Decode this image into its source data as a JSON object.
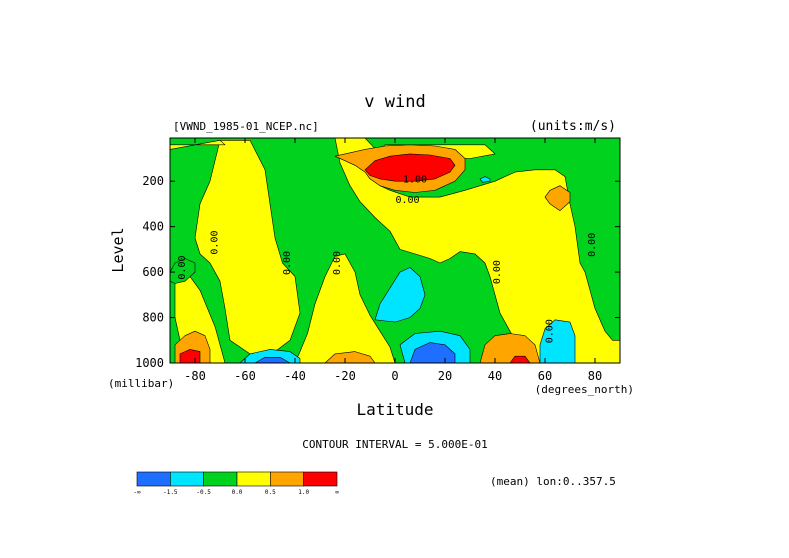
{
  "chart_data": {
    "type": "contour",
    "title": "v wind",
    "file_label": "[VWND_1985-01_NCEP.nc]",
    "units_label": "(units:m/s)",
    "xlabel": "Latitude",
    "x_units": "(degrees_north)",
    "ylabel": "Level",
    "y_units": "(millibar)",
    "xlim": [
      -90,
      90
    ],
    "ylim": [
      1000,
      10
    ],
    "x_ticks": [
      -80,
      -60,
      -40,
      -20,
      0,
      20,
      40,
      60,
      80
    ],
    "x_tick_labels": [
      "-80",
      "-60",
      "-40",
      "-20",
      "0",
      "20",
      "40",
      "60",
      "80"
    ],
    "y_ticks": [
      200,
      400,
      600,
      800,
      1000
    ],
    "y_tick_labels": [
      "200",
      "400",
      "600",
      "800",
      "1000"
    ],
    "contour_interval_text": "CONTOUR INTERVAL = 5.000E-01",
    "mean_text": "(mean) lon:0..357.5",
    "contour_labels": [
      {
        "text": "1.00",
        "x": 8,
        "y": 205
      },
      {
        "text": "0.00",
        "x": 5,
        "y": 295
      },
      {
        "text": "0.00",
        "x": -71,
        "y": 470,
        "orientation": "vertical"
      },
      {
        "text": "0.00",
        "x": -42,
        "y": 560,
        "orientation": "vertical"
      },
      {
        "text": "0.00",
        "x": -22,
        "y": 560,
        "orientation": "vertical"
      },
      {
        "text": "0.00",
        "x": 42,
        "y": 600,
        "orientation": "vertical"
      },
      {
        "text": "0.00",
        "x": 80,
        "y": 480,
        "orientation": "vertical"
      },
      {
        "text": "0.00",
        "x": 63,
        "y": 860,
        "orientation": "vertical"
      },
      {
        "text": "0.00",
        "x": -84,
        "y": 580,
        "orientation": "vertical"
      }
    ],
    "colorbar": {
      "colors": [
        "#1e6eff",
        "#00e5ff",
        "#00d21e",
        "#ffff00",
        "#ffa500",
        "#ff0000"
      ],
      "labels": [
        "-∞",
        "-1.5",
        "-0.5",
        "0.0",
        "0.5",
        "1.0",
        "∞"
      ]
    },
    "regions": [
      {
        "color": "#ffff00",
        "points": [
          [
            -70,
            20
          ],
          [
            -58,
            20
          ],
          [
            -52,
            150
          ],
          [
            -50,
            300
          ],
          [
            -48,
            450
          ],
          [
            -45,
            560
          ],
          [
            -40,
            620
          ],
          [
            -38,
            780
          ],
          [
            -42,
            900
          ],
          [
            -48,
            950
          ],
          [
            -58,
            960
          ],
          [
            -66,
            900
          ],
          [
            -68,
            760
          ],
          [
            -70,
            640
          ],
          [
            -74,
            560
          ],
          [
            -78,
            520
          ],
          [
            -80,
            450
          ],
          [
            -78,
            300
          ],
          [
            -74,
            200
          ]
        ]
      },
      {
        "color": "#ffff00",
        "points": [
          [
            -88,
            630
          ],
          [
            -82,
            620
          ],
          [
            -78,
            680
          ],
          [
            -75,
            760
          ],
          [
            -72,
            840
          ],
          [
            -70,
            920
          ],
          [
            -68,
            1000
          ],
          [
            -84,
            1000
          ],
          [
            -86,
            900
          ],
          [
            -88,
            800
          ]
        ]
      },
      {
        "color": "#ffff00",
        "points": [
          [
            -35,
            870
          ],
          [
            -32,
            740
          ],
          [
            -28,
            620
          ],
          [
            -24,
            530
          ],
          [
            -20,
            520
          ],
          [
            -16,
            600
          ],
          [
            -14,
            700
          ],
          [
            -10,
            790
          ],
          [
            -6,
            860
          ],
          [
            -2,
            930
          ],
          [
            0,
            1000
          ],
          [
            -40,
            1000
          ],
          [
            -38,
            950
          ]
        ]
      },
      {
        "color": "#ffff00",
        "points": [
          [
            -90,
            60
          ],
          [
            -70,
            20
          ],
          [
            -68,
            40
          ],
          [
            -90,
            40
          ]
        ]
      },
      {
        "color": "#ffff00",
        "points": [
          [
            -24,
            10
          ],
          [
            -12,
            10
          ],
          [
            -6,
            80
          ],
          [
            -8,
            180
          ],
          [
            -6,
            220
          ],
          [
            -2,
            240
          ],
          [
            6,
            270
          ],
          [
            18,
            270
          ],
          [
            28,
            240
          ],
          [
            40,
            200
          ],
          [
            48,
            160
          ],
          [
            56,
            150
          ],
          [
            64,
            150
          ],
          [
            68,
            180
          ],
          [
            70,
            300
          ],
          [
            72,
            400
          ],
          [
            74,
            560
          ],
          [
            76,
            600
          ],
          [
            78,
            680
          ],
          [
            80,
            760
          ],
          [
            84,
            860
          ],
          [
            87,
            900
          ],
          [
            90,
            900
          ],
          [
            90,
            1000
          ],
          [
            50,
            1000
          ],
          [
            48,
            900
          ],
          [
            42,
            780
          ],
          [
            40,
            700
          ],
          [
            38,
            620
          ],
          [
            36,
            560
          ],
          [
            32,
            520
          ],
          [
            26,
            510
          ],
          [
            22,
            540
          ],
          [
            18,
            560
          ],
          [
            14,
            540
          ],
          [
            8,
            520
          ],
          [
            2,
            500
          ],
          [
            -2,
            420
          ],
          [
            -8,
            360
          ],
          [
            -14,
            290
          ],
          [
            -18,
            220
          ],
          [
            -22,
            120
          ]
        ]
      },
      {
        "color": "#ffff00",
        "points": [
          [
            -6,
            60
          ],
          [
            -4,
            40
          ],
          [
            36,
            40
          ],
          [
            40,
            80
          ],
          [
            30,
            100
          ],
          [
            10,
            90
          ]
        ]
      },
      {
        "color": "#ffa500",
        "points": [
          [
            -24,
            90
          ],
          [
            -12,
            60
          ],
          [
            -4,
            45
          ],
          [
            6,
            40
          ],
          [
            16,
            45
          ],
          [
            24,
            60
          ],
          [
            28,
            100
          ],
          [
            28,
            150
          ],
          [
            24,
            200
          ],
          [
            16,
            240
          ],
          [
            8,
            250
          ],
          [
            0,
            240
          ],
          [
            -6,
            220
          ],
          [
            -10,
            190
          ],
          [
            -12,
            160
          ],
          [
            -16,
            130
          ]
        ]
      },
      {
        "color": "#ff0000",
        "points": [
          [
            -12,
            150
          ],
          [
            -8,
            110
          ],
          [
            -2,
            90
          ],
          [
            6,
            80
          ],
          [
            14,
            85
          ],
          [
            22,
            100
          ],
          [
            24,
            130
          ],
          [
            22,
            160
          ],
          [
            16,
            190
          ],
          [
            8,
            200
          ],
          [
            0,
            200
          ],
          [
            -6,
            190
          ],
          [
            -10,
            175
          ]
        ]
      },
      {
        "color": "#ffa500",
        "points": [
          [
            62,
            240
          ],
          [
            66,
            220
          ],
          [
            70,
            250
          ],
          [
            70,
            290
          ],
          [
            66,
            330
          ],
          [
            62,
            300
          ],
          [
            60,
            270
          ]
        ]
      },
      {
        "color": "#ffa500",
        "points": [
          [
            -88,
            920
          ],
          [
            -84,
            880
          ],
          [
            -80,
            860
          ],
          [
            -76,
            880
          ],
          [
            -74,
            940
          ],
          [
            -74,
            1000
          ],
          [
            -88,
            1000
          ]
        ]
      },
      {
        "color": "#ff0000",
        "points": [
          [
            -86,
            960
          ],
          [
            -82,
            940
          ],
          [
            -78,
            950
          ],
          [
            -78,
            1000
          ],
          [
            -86,
            1000
          ]
        ]
      },
      {
        "color": "#ffa500",
        "points": [
          [
            -28,
            1000
          ],
          [
            -24,
            960
          ],
          [
            -16,
            950
          ],
          [
            -10,
            970
          ],
          [
            -8,
            1000
          ]
        ]
      },
      {
        "color": "#ffa500",
        "points": [
          [
            34,
            1000
          ],
          [
            36,
            920
          ],
          [
            40,
            880
          ],
          [
            46,
            870
          ],
          [
            52,
            880
          ],
          [
            56,
            920
          ],
          [
            58,
            1000
          ]
        ]
      },
      {
        "color": "#ff0000",
        "points": [
          [
            46,
            1000
          ],
          [
            48,
            970
          ],
          [
            52,
            970
          ],
          [
            54,
            1000
          ]
        ]
      },
      {
        "color": "#00e5ff",
        "points": [
          [
            -8,
            810
          ],
          [
            -6,
            740
          ],
          [
            -2,
            670
          ],
          [
            2,
            600
          ],
          [
            6,
            580
          ],
          [
            10,
            620
          ],
          [
            12,
            700
          ],
          [
            10,
            760
          ],
          [
            6,
            800
          ],
          [
            0,
            820
          ]
        ]
      },
      {
        "color": "#00e5ff",
        "points": [
          [
            4,
            1000
          ],
          [
            2,
            920
          ],
          [
            8,
            870
          ],
          [
            18,
            860
          ],
          [
            26,
            880
          ],
          [
            30,
            940
          ],
          [
            30,
            1000
          ]
        ]
      },
      {
        "color": "#1e6eff",
        "points": [
          [
            6,
            1000
          ],
          [
            8,
            940
          ],
          [
            14,
            910
          ],
          [
            20,
            920
          ],
          [
            24,
            960
          ],
          [
            24,
            1000
          ]
        ]
      },
      {
        "color": "#00e5ff",
        "points": [
          [
            -62,
            1000
          ],
          [
            -58,
            960
          ],
          [
            -50,
            940
          ],
          [
            -42,
            950
          ],
          [
            -38,
            980
          ],
          [
            -38,
            1000
          ]
        ]
      },
      {
        "color": "#1e6eff",
        "points": [
          [
            -56,
            1000
          ],
          [
            -52,
            975
          ],
          [
            -46,
            975
          ],
          [
            -42,
            1000
          ]
        ]
      },
      {
        "color": "#00e5ff",
        "points": [
          [
            58,
            1000
          ],
          [
            58,
            920
          ],
          [
            60,
            850
          ],
          [
            64,
            810
          ],
          [
            70,
            820
          ],
          [
            72,
            880
          ],
          [
            72,
            1000
          ]
        ]
      },
      {
        "color": "#00e5ff",
        "points": [
          [
            34,
            190
          ],
          [
            36,
            180
          ],
          [
            38,
            190
          ],
          [
            38,
            200
          ],
          [
            35,
            205
          ]
        ]
      },
      {
        "color": "#00d21e",
        "points": [
          [
            -90,
            600
          ],
          [
            -88,
            560
          ],
          [
            -84,
            540
          ],
          [
            -80,
            560
          ],
          [
            -80,
            600
          ],
          [
            -84,
            640
          ],
          [
            -88,
            650
          ],
          [
            -90,
            640
          ]
        ]
      }
    ]
  }
}
